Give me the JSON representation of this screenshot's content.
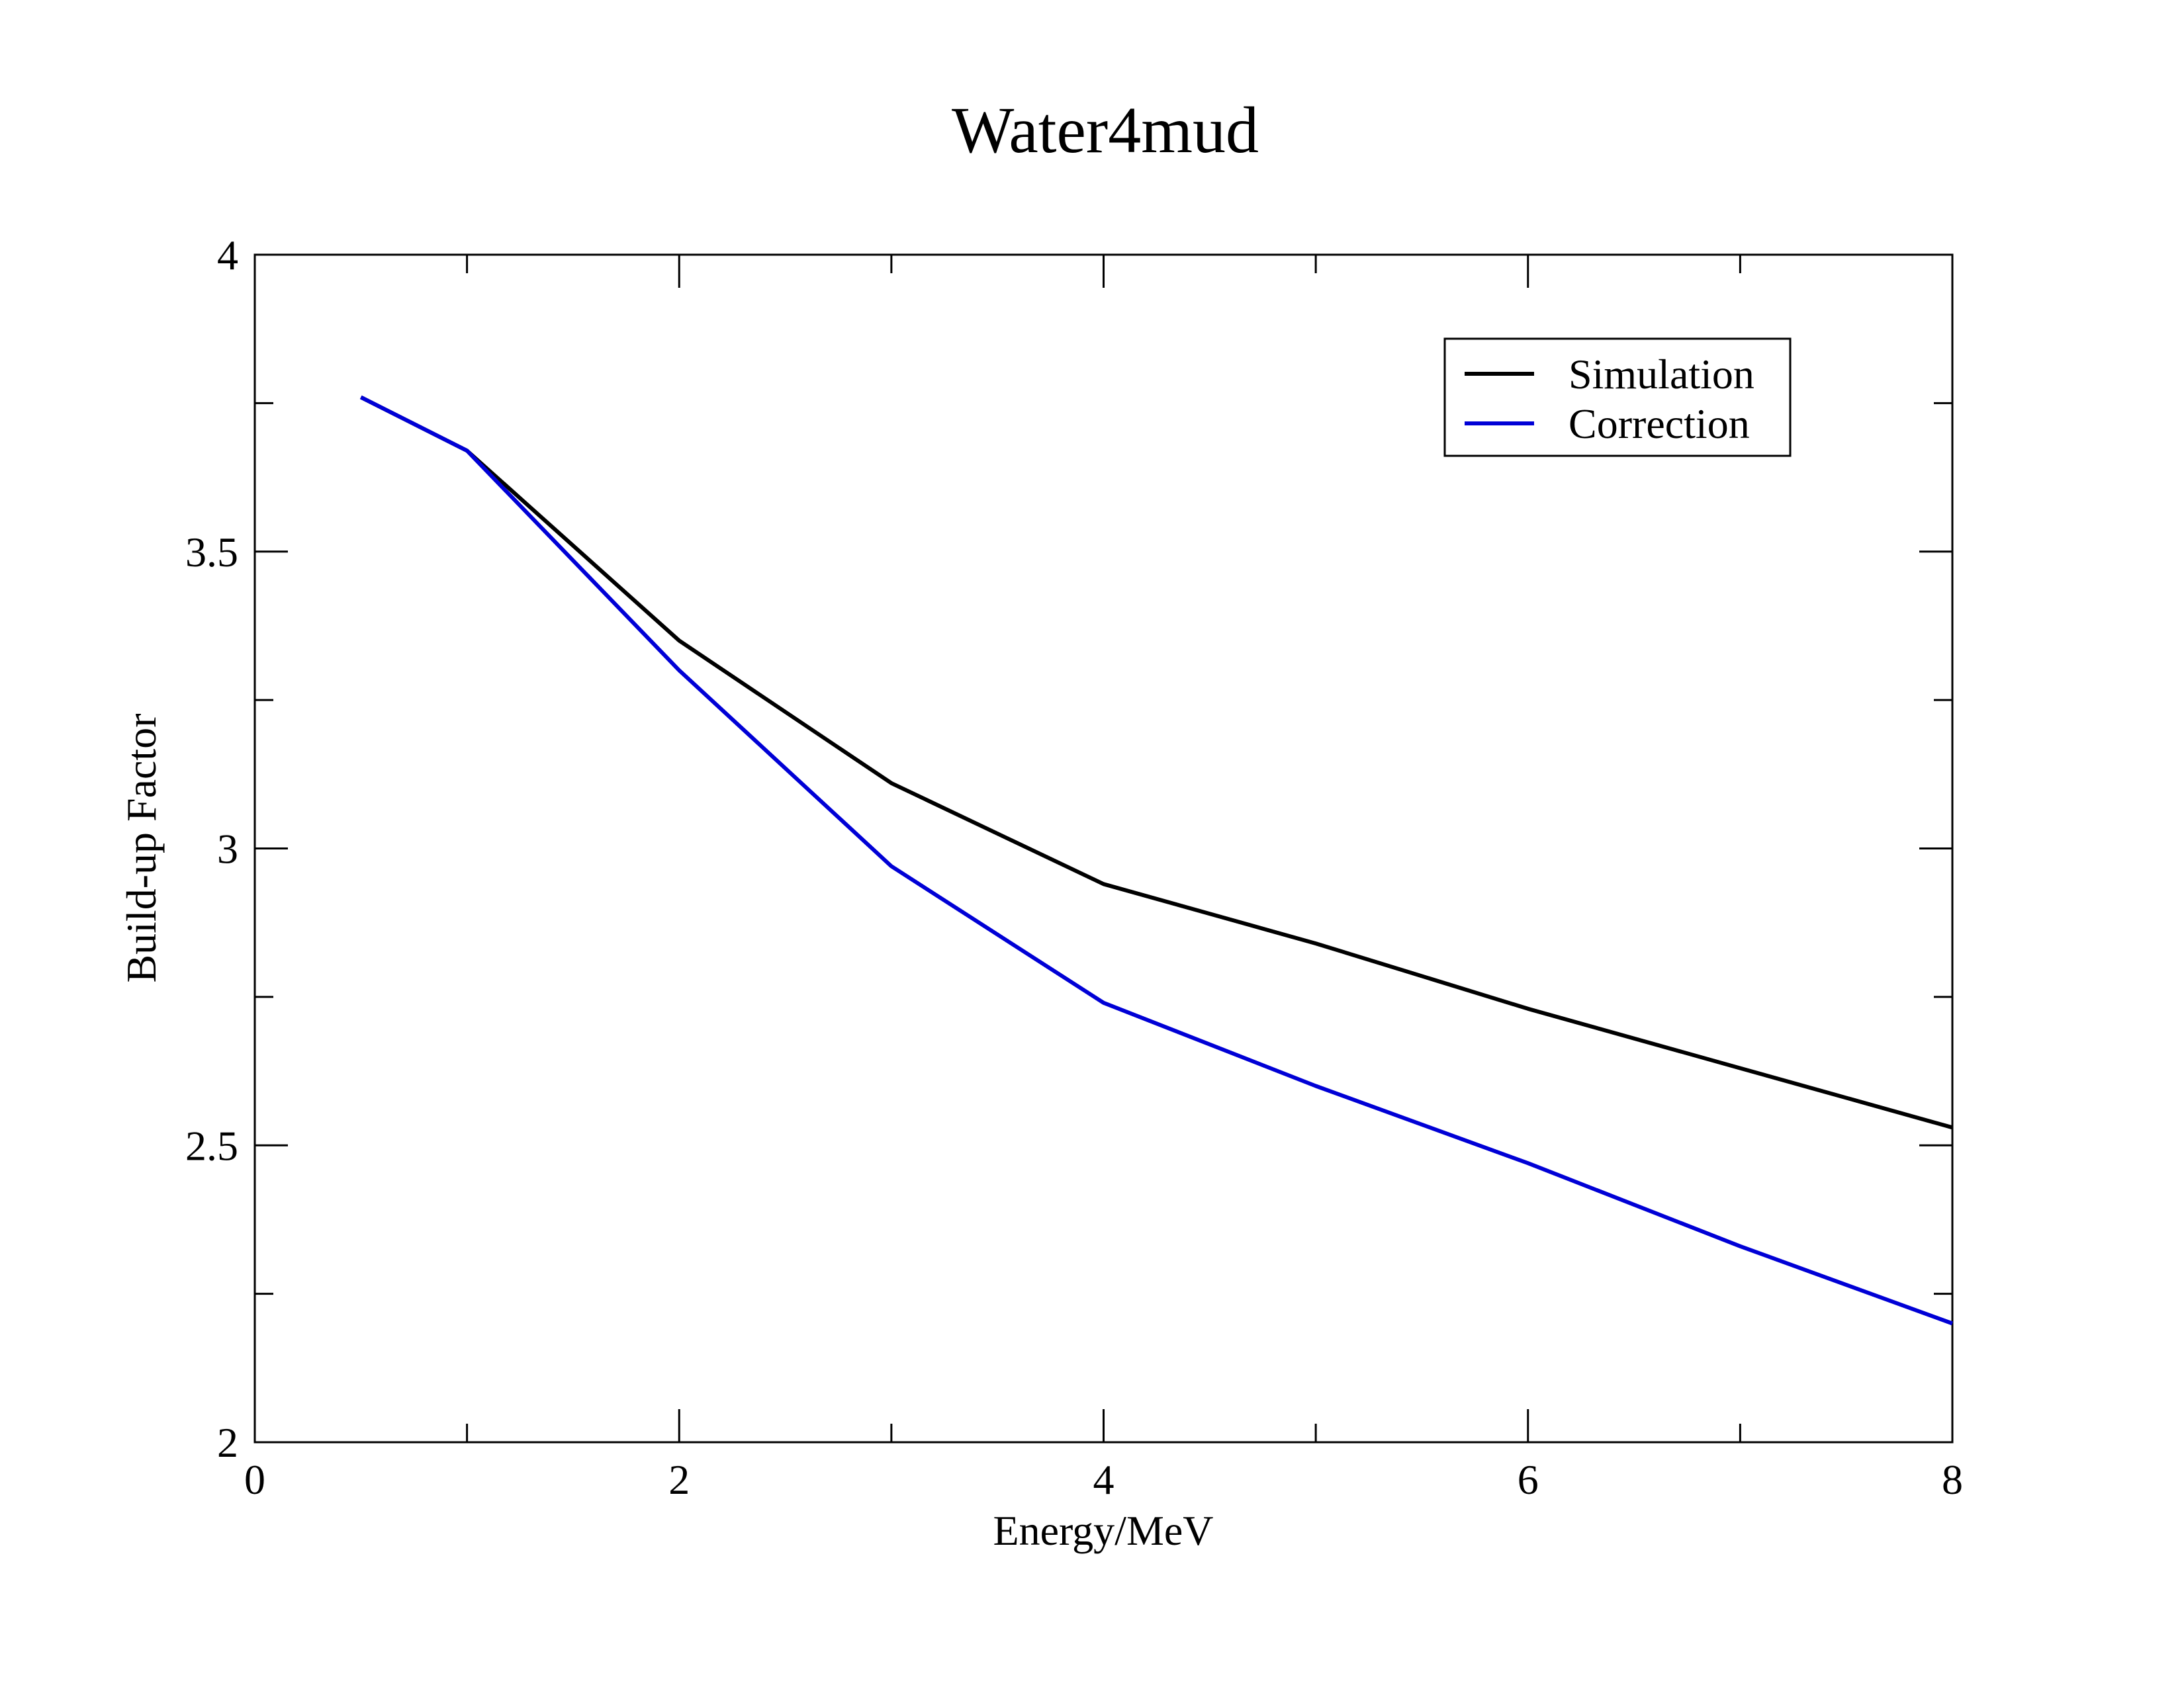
{
  "chart_data": {
    "type": "line",
    "title": "Water4mud",
    "xlabel": "Energy/MeV",
    "ylabel": "Build-up Factor",
    "xlim": [
      0,
      8
    ],
    "ylim": [
      2,
      4
    ],
    "xticks": [
      "0",
      "2",
      "4",
      "6",
      "8"
    ],
    "yticks": [
      "2",
      "2.5",
      "3",
      "3.5",
      "4"
    ],
    "grid": false,
    "legend_position": "top-right",
    "series": [
      {
        "name": "Simulation",
        "color": "#000000",
        "x": [
          0.5,
          1,
          2,
          3,
          4,
          5,
          6,
          7,
          8
        ],
        "y": [
          3.76,
          3.67,
          3.35,
          3.11,
          2.94,
          2.84,
          2.73,
          2.63,
          2.53
        ]
      },
      {
        "name": "Correction",
        "color": "#0000d6",
        "x": [
          0.5,
          1,
          2,
          3,
          4,
          5,
          6,
          7,
          8
        ],
        "y": [
          3.76,
          3.67,
          3.3,
          2.97,
          2.74,
          2.6,
          2.47,
          2.33,
          2.2
        ]
      }
    ]
  }
}
